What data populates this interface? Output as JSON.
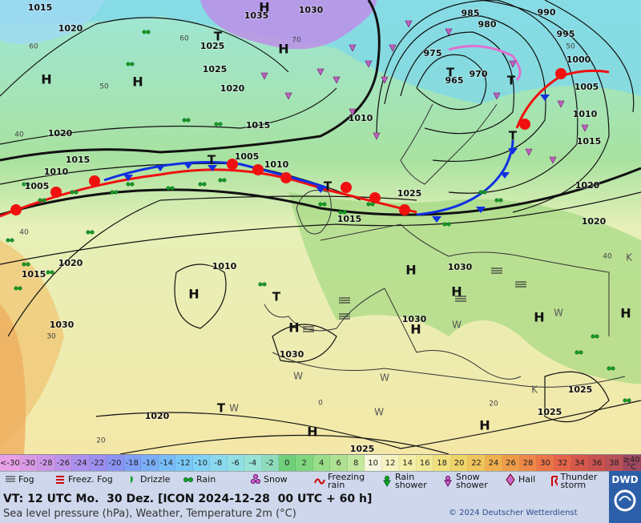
{
  "map": {
    "pressure_labels": [
      "1015",
      "1035",
      "1030",
      "1020",
      "1025",
      "1025",
      "1020",
      "1020",
      "1015",
      "1015",
      "1010",
      "1005",
      "1005",
      "1010",
      "1010",
      "985",
      "980",
      "975",
      "970",
      "965",
      "990",
      "995",
      "1000",
      "1005",
      "1010",
      "1015",
      "1020",
      "1025",
      "1015",
      "1020",
      "1015",
      "1010",
      "1030",
      "1030",
      "1030",
      "1030",
      "1020",
      "1025",
      "1025",
      "1020",
      "1025"
    ],
    "high_labels": [
      "H",
      "H",
      "H",
      "H",
      "H",
      "H",
      "H",
      "H",
      "H",
      "H",
      "H",
      "H",
      "H"
    ],
    "low_labels": [
      "T",
      "T",
      "T",
      "T",
      "T",
      "T",
      "T",
      "T"
    ],
    "other_labels": [
      "W",
      "W",
      "W",
      "W",
      "W",
      "W",
      "K",
      "K"
    ],
    "temperature_labels": [
      "60",
      "70",
      "50",
      "40",
      "60",
      "40",
      "30",
      "20",
      "0",
      "20",
      "40",
      "50"
    ]
  },
  "scale": {
    "low": "<-30",
    "values": [
      -30,
      -28,
      -26,
      -24,
      -22,
      -20,
      -18,
      -16,
      -14,
      -12,
      -10,
      -8,
      -6,
      -4,
      -2,
      0,
      2,
      4,
      6,
      8,
      10,
      12,
      14,
      16,
      18,
      20,
      22,
      24,
      26,
      28,
      30,
      32,
      34,
      36,
      38
    ],
    "high": "≥40 °C",
    "colors": [
      "#e8a0e8",
      "#d99be6",
      "#cc96e8",
      "#bd92ea",
      "#ad8fed",
      "#9d8ff0",
      "#8c93f3",
      "#80a0f5",
      "#7aaef7",
      "#78bcf8",
      "#7ac8f7",
      "#80d2f4",
      "#8ad9ee",
      "#92dfe4",
      "#98e2d6",
      "#8fdcbc",
      "#70cf7a",
      "#80d67e",
      "#98dd88",
      "#aee292",
      "#c4e89e",
      "#f6f6dc",
      "#f7f2c0",
      "#f5eea8",
      "#f3e896",
      "#f1e07e",
      "#efd46a",
      "#f0c45c",
      "#f0b050",
      "#ef9c4a",
      "#ee8848",
      "#eb7448",
      "#e4644a",
      "#d6584c",
      "#c85250",
      "#b85058",
      "#a04860"
    ]
  },
  "weather_legend": [
    "Fog",
    "Freez. Fog",
    "Drizzle",
    "Rain",
    "Snow",
    "Freezing rain",
    "Rain shower",
    "Snow shower",
    "Hail",
    "Thunder storm"
  ],
  "footer": {
    "valid_time": "VT: 12 UTC Mo.  30 Dez. [ICON 2024-12-28  00 UTC + 60 h]",
    "description": "Sea level pressure (hPa), Weather, Temperature 2m (°C)",
    "copyright": "© 2024 Deutscher Wetterdienst",
    "logo": "DWD"
  }
}
